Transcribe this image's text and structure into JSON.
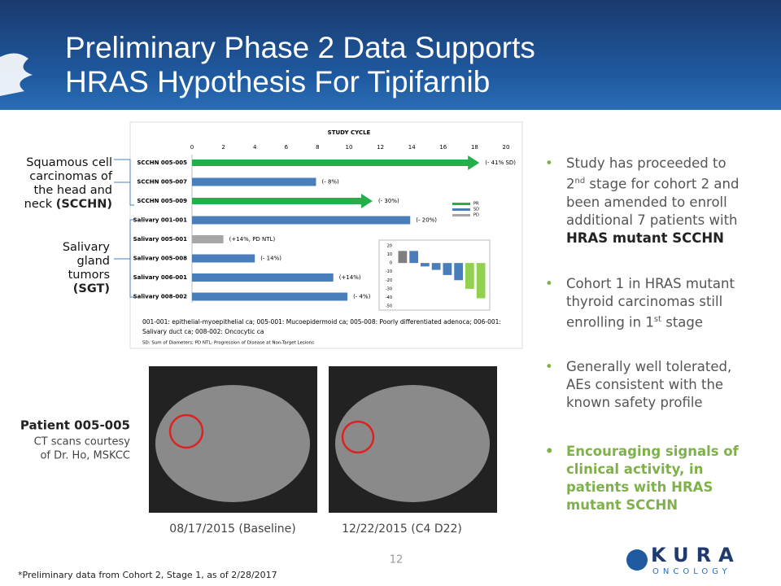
{
  "header": {
    "title_lines": [
      "Preliminary Phase 2 Data Supports",
      "HRAS Hypothesis For Tipifarnib"
    ]
  },
  "side_labels": {
    "scchn": [
      "Squamous cell",
      "carcinomas of",
      "the head and",
      "neck ",
      "(SCCHN)"
    ],
    "sgt": [
      "Salivary",
      "gland",
      "tumors",
      "(SGT)"
    ]
  },
  "chart_data": [
    {
      "type": "bar",
      "orientation": "horizontal",
      "title": "STUDY CYCLE",
      "categories": [
        "SCCHN 005-005",
        "SCCHN 005-007",
        "SCCHN 005-009",
        "Salivary 001-001",
        "Salivary 005-001",
        "Salivary 005-008",
        "Salivary 006-001",
        "Salivary 008-002"
      ],
      "values": [
        18.3,
        7.9,
        11.5,
        13.9,
        2.0,
        4.0,
        9.0,
        9.9
      ],
      "colors": [
        "#22b04b",
        "#4a7ebb",
        "#22b04b",
        "#4a7ebb",
        "#a6a6a6",
        "#4a7ebb",
        "#4a7ebb",
        "#4a7ebb"
      ],
      "ongoing": [
        true,
        false,
        true,
        false,
        false,
        false,
        false,
        false
      ],
      "bar_labels": [
        "(- 41% SD)",
        "(- 8%)",
        "(- 30%)",
        "(- 20%)",
        "(+14%, PD NTL)",
        "(- 14%)",
        "(+14%)",
        "(- 4%)"
      ],
      "xlim": [
        0,
        20
      ],
      "xticks": [
        0,
        2,
        4,
        6,
        8,
        10,
        12,
        14,
        16,
        18,
        20
      ],
      "legend": [
        {
          "name": "PR",
          "color": "#22b04b"
        },
        {
          "name": "SD",
          "color": "#4a7ebb"
        },
        {
          "name": "PD",
          "color": "#a6a6a6"
        }
      ],
      "notes": [
        "001-001: epithelial-myoepithelial  ca; 005-001: Mucoepidermoid ca; 005-008: Poorly differentiated adenoca; 006-001:",
        "Salivary duct ca; 008-002: Oncocytic ca",
        "SD: Sum of Diameters; PD NTL: Progression of Disease at Non-Target Lesions"
      ]
    },
    {
      "type": "bar",
      "orientation": "vertical",
      "values": [
        14,
        14,
        -4,
        -8,
        -14,
        -20,
        -30,
        -41
      ],
      "colors": [
        "#7f7f7f",
        "#4a7ebb",
        "#4a7ebb",
        "#4a7ebb",
        "#4a7ebb",
        "#4a7ebb",
        "#92d050",
        "#92d050"
      ],
      "ylim": [
        -50,
        20
      ],
      "yticks": [
        20,
        10,
        0,
        -10,
        -20,
        -30,
        -40,
        -50
      ]
    }
  ],
  "patient": {
    "id": "Patient 005-005",
    "credit": [
      "CT scans courtesy",
      "of Dr. Ho, MSKCC"
    ]
  },
  "captions": [
    "08/17/2015 (Baseline)",
    "12/22/2015 (C4 D22)"
  ],
  "bullets": [
    [
      "Study has proceeded to 2",
      "nd",
      " stage for cohort 2 and been amended to enroll additional 7 patients with ",
      "HRAS mutant SCCHN"
    ],
    [
      "Cohort 1 in HRAS mutant thyroid carcinomas still enrolling in 1",
      "st",
      " stage"
    ],
    [
      "Generally well tolerated, AEs consistent with the known safety profile"
    ],
    [
      "Encouraging signals of clinical activity, in patients with HRAS mutant SCCHN"
    ]
  ],
  "page_number": "12",
  "footnote": "*Preliminary data from Cohort 2, Stage 1, as of 2/28/2017",
  "logo": {
    "word": "KURA",
    "sub": "ONCOLOGY"
  }
}
